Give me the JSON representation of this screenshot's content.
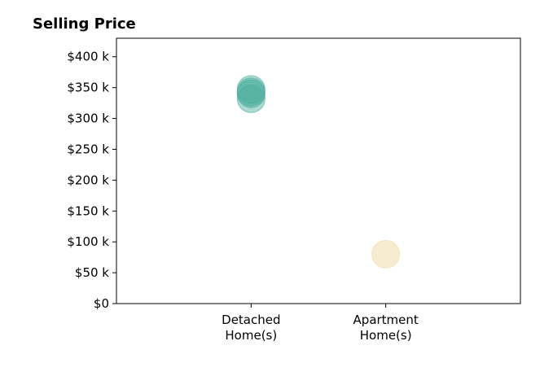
{
  "chart_data": {
    "type": "scatter",
    "title": "Selling Price",
    "xlabel": "",
    "ylabel": "",
    "categories": [
      {
        "label_lines": [
          "Detached",
          "Home(s)"
        ],
        "x": 1
      },
      {
        "label_lines": [
          "Apartment",
          "Home(s)"
        ],
        "x": 2
      }
    ],
    "xlim": [
      0,
      3
    ],
    "ylim": [
      0,
      430000
    ],
    "y_ticks": [
      {
        "value": 0,
        "label": "$0"
      },
      {
        "value": 50000,
        "label": "$50 k"
      },
      {
        "value": 100000,
        "label": "$100 k"
      },
      {
        "value": 150000,
        "label": "$150 k"
      },
      {
        "value": 200000,
        "label": "$200 k"
      },
      {
        "value": 250000,
        "label": "$250 k"
      },
      {
        "value": 300000,
        "label": "$300 k"
      },
      {
        "value": 350000,
        "label": "$350 k"
      },
      {
        "value": 400000,
        "label": "$400 k"
      }
    ],
    "grid": false,
    "series": [
      {
        "color": "#4aac9c",
        "opacity": 0.45,
        "points": [
          {
            "x": 1,
            "y": 332000
          },
          {
            "x": 1,
            "y": 340000
          },
          {
            "x": 1,
            "y": 343000
          },
          {
            "x": 1,
            "y": 347000
          }
        ]
      },
      {
        "color": "#f2dfb0",
        "opacity": 0.6,
        "points": [
          {
            "x": 2,
            "y": 80000
          }
        ]
      }
    ]
  }
}
